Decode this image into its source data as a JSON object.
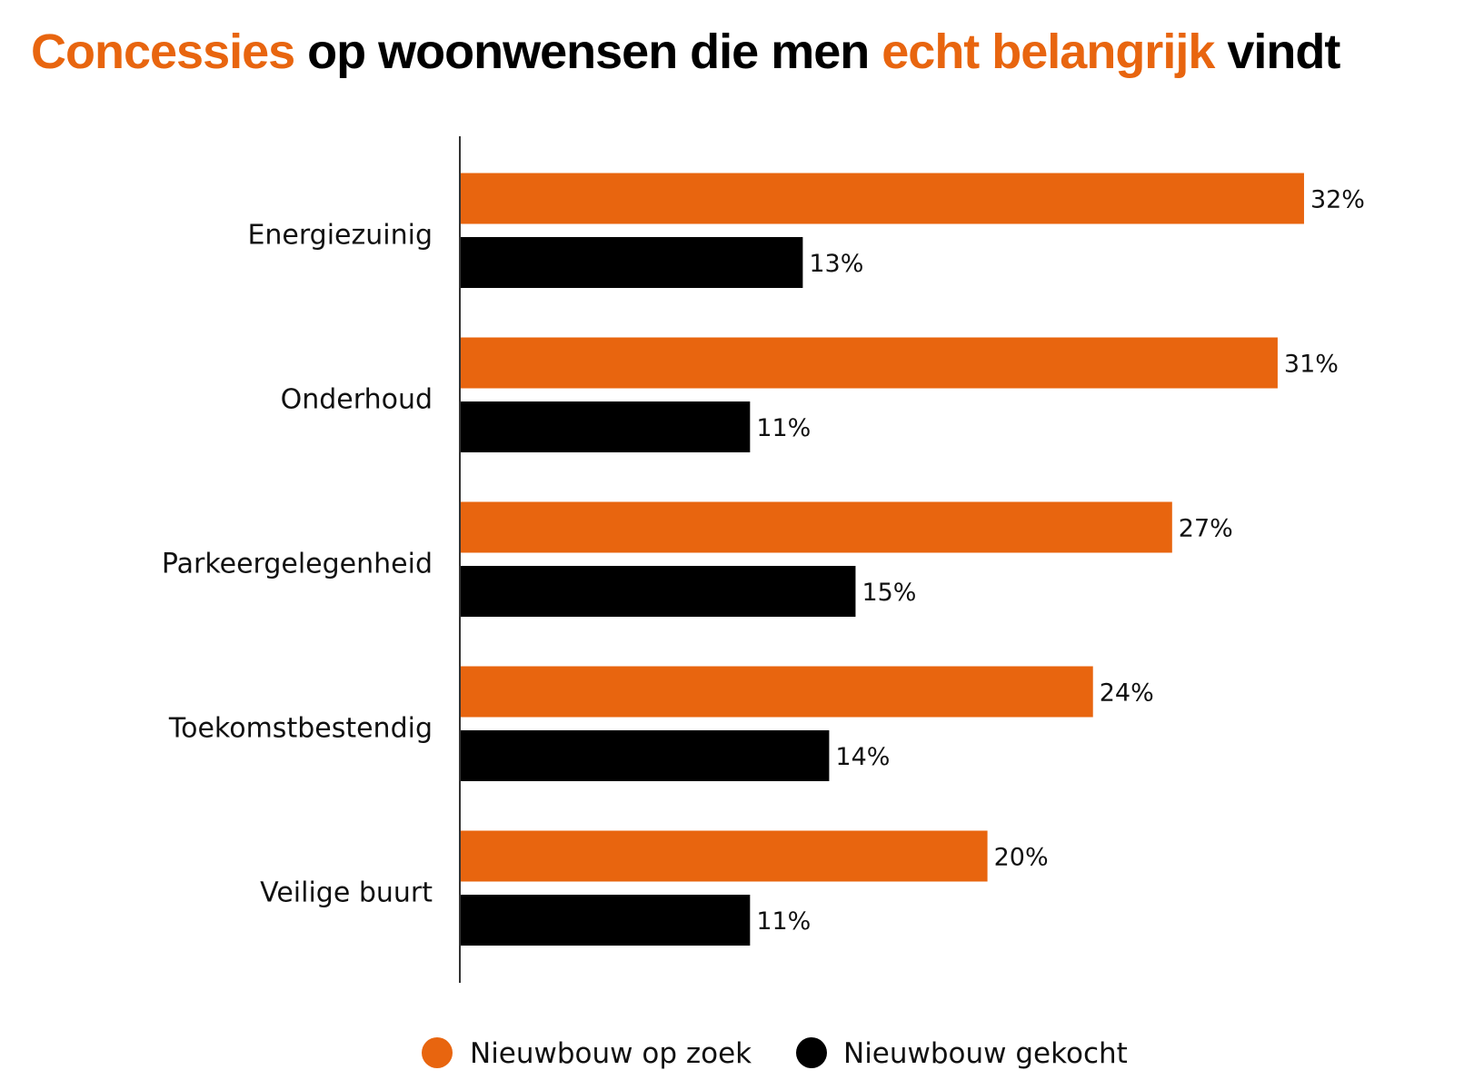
{
  "title": {
    "part1": "Concessies",
    "part2": " op woonwensen die men ",
    "part3": "echt belangrijk",
    "part4": " vindt"
  },
  "colors": {
    "accent": "#E8650F",
    "dark": "#000000"
  },
  "chart_data": {
    "type": "bar",
    "orientation": "horizontal",
    "title": "Concessies op woonwensen die men echt belangrijk vindt",
    "categories": [
      "Energiezuinig",
      "Onderhoud",
      "Parkeergelegenheid",
      "Toekomstbestendig",
      "Veilige buurt"
    ],
    "series": [
      {
        "name": "Nieuwbouw op zoek",
        "color": "#E8650F",
        "values": [
          32,
          31,
          27,
          24,
          20
        ]
      },
      {
        "name": "Nieuwbouw gekocht",
        "color": "#000000",
        "values": [
          13,
          11,
          15,
          14,
          11
        ]
      }
    ],
    "value_suffix": "%",
    "xlim": [
      0,
      36
    ],
    "grid": false,
    "legend": "bottom"
  }
}
